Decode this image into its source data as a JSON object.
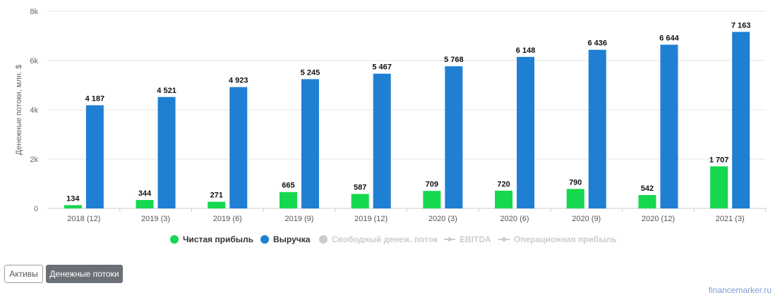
{
  "chart_data": {
    "type": "bar",
    "categories": [
      "2018 (12)",
      "2019 (3)",
      "2019 (6)",
      "2019 (9)",
      "2019 (12)",
      "2020 (3)",
      "2020 (6)",
      "2020 (9)",
      "2020 (12)",
      "2021 (3)"
    ],
    "series": [
      {
        "name": "Чистая прибыль",
        "color": "#16d84f",
        "values": [
          134,
          344,
          271,
          665,
          587,
          709,
          720,
          790,
          542,
          1707
        ],
        "labels": [
          "134",
          "344",
          "271",
          "665",
          "587",
          "709",
          "720",
          "790",
          "542",
          "1 707"
        ]
      },
      {
        "name": "Выручка",
        "color": "#1f7fd3",
        "values": [
          4187,
          4521,
          4923,
          5245,
          5467,
          5768,
          6148,
          6436,
          6644,
          7163
        ],
        "labels": [
          "4 187",
          "4 521",
          "4 923",
          "5 245",
          "5 467",
          "5 768",
          "6 148",
          "6 436",
          "6 644",
          "7 163"
        ]
      }
    ],
    "ylabel": "Денежные потоки, млн. $",
    "ylim": [
      0,
      8000
    ],
    "yticks": [
      0,
      2000,
      4000,
      6000,
      8000
    ],
    "ytick_labels": [
      "0",
      "2k",
      "4k",
      "6k",
      "8k"
    ],
    "grid": true,
    "legend_position": "bottom-center"
  },
  "legend": [
    {
      "label": "Чистая прибыль",
      "color": "#16d84f",
      "symbol": "dot",
      "active": true
    },
    {
      "label": "Выручка",
      "color": "#1f7fd3",
      "symbol": "dot",
      "active": true
    },
    {
      "label": "Свободный денеж. поток",
      "color": "#cccccc",
      "symbol": "dot",
      "active": false
    },
    {
      "label": "EBITDA",
      "color": "#cccccc",
      "symbol": "line",
      "active": false
    },
    {
      "label": "Операционная прибыль",
      "color": "#cccccc",
      "symbol": "line",
      "active": false
    }
  ],
  "buttons": {
    "assets": "Активы",
    "cash_flows": "Денежные потоки"
  },
  "watermark": "financemarker.ru"
}
